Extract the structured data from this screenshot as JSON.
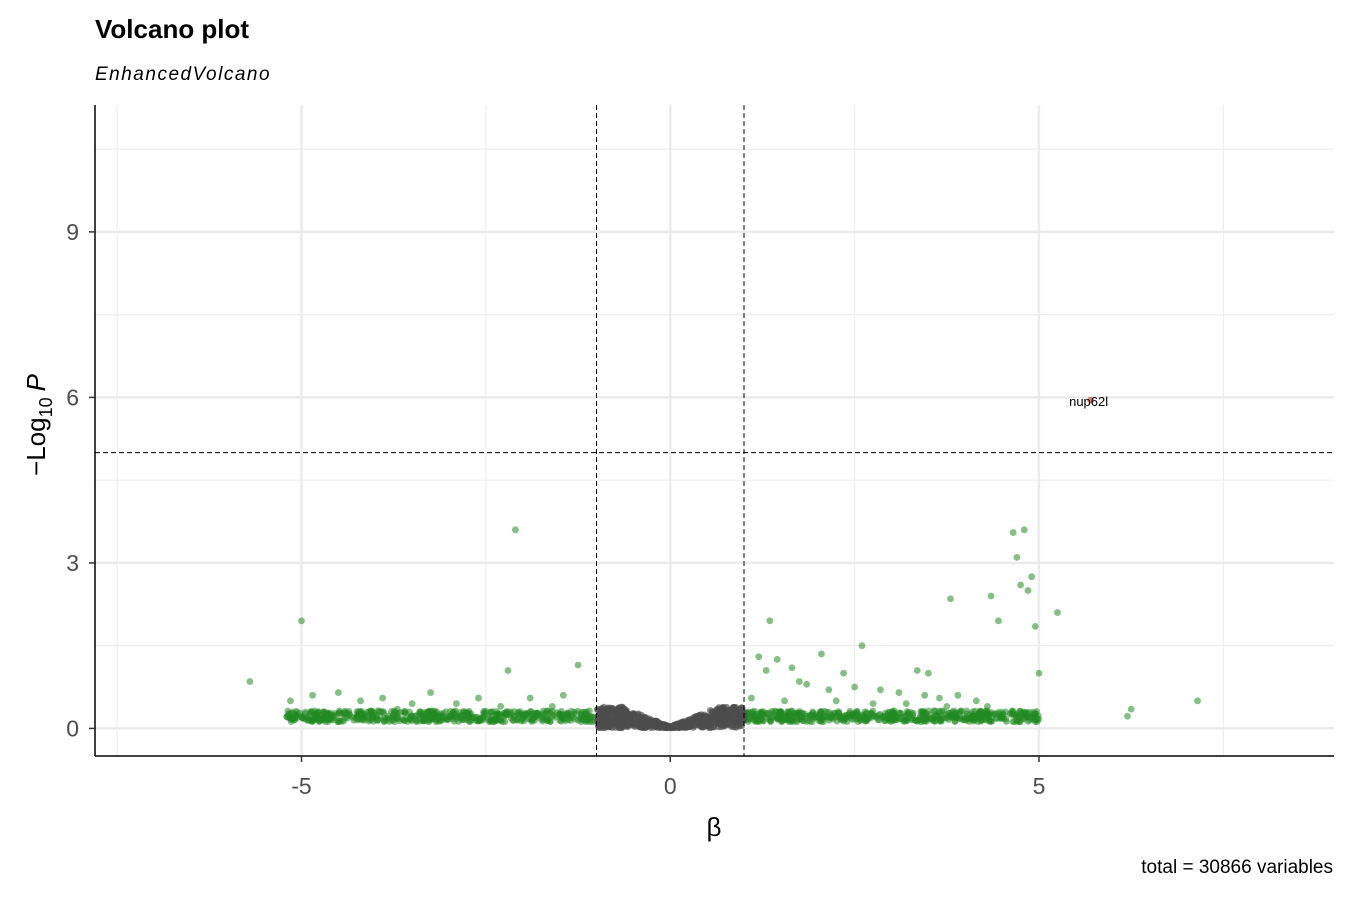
{
  "chart_data": {
    "type": "scatter",
    "title": "Volcano plot",
    "subtitle": "EnhancedVolcano",
    "caption": "total = 30866 variables",
    "xlabel": "β",
    "ylabel": {
      "prefix": "−Log",
      "sub": "10",
      "var": "P"
    },
    "xlim": [
      -7.8,
      9.0
    ],
    "ylim": [
      -0.5,
      11.3
    ],
    "xticks": [
      -5,
      0,
      5
    ],
    "xtick_labels": [
      "-5",
      "0",
      "5"
    ],
    "yticks": [
      0,
      3,
      6,
      9
    ],
    "ytick_labels": [
      "0",
      "3",
      "6",
      "9"
    ],
    "grid": true,
    "fc_cutoff": [
      -1,
      1
    ],
    "p_cutoff_log10": 5,
    "colors": {
      "ns": "#4D4D4D",
      "fc": "#228B22",
      "fc_p": "#CD2626",
      "grid": "#EBEBEB",
      "cutoff": "#000000"
    },
    "label": {
      "text": "nup62l",
      "x": 5.7,
      "y": 5.95
    },
    "significant_points": [
      [
        5.7,
        5.95
      ]
    ],
    "fc_points": [
      [
        -2.1,
        3.6
      ],
      [
        -5.0,
        1.95
      ],
      [
        -5.7,
        0.85
      ],
      [
        -2.2,
        1.05
      ],
      [
        -1.25,
        1.15
      ],
      [
        -4.85,
        0.6
      ],
      [
        -5.15,
        0.5
      ],
      [
        -4.5,
        0.65
      ],
      [
        -3.9,
        0.55
      ],
      [
        -3.25,
        0.65
      ],
      [
        -2.6,
        0.55
      ],
      [
        -1.45,
        0.6
      ],
      [
        -4.2,
        0.5
      ],
      [
        -3.5,
        0.45
      ],
      [
        -2.9,
        0.45
      ],
      [
        -1.9,
        0.55
      ],
      [
        -1.6,
        0.4
      ],
      [
        -4.7,
        0.3
      ],
      [
        -3.7,
        0.35
      ],
      [
        -2.3,
        0.4
      ],
      [
        1.35,
        1.95
      ],
      [
        2.6,
        1.5
      ],
      [
        2.05,
        1.35
      ],
      [
        1.2,
        1.3
      ],
      [
        1.45,
        1.25
      ],
      [
        1.65,
        1.1
      ],
      [
        1.3,
        1.05
      ],
      [
        2.35,
        1.0
      ],
      [
        3.35,
        1.05
      ],
      [
        3.5,
        1.0
      ],
      [
        1.75,
        0.85
      ],
      [
        1.85,
        0.8
      ],
      [
        2.15,
        0.7
      ],
      [
        2.5,
        0.75
      ],
      [
        2.85,
        0.7
      ],
      [
        3.1,
        0.65
      ],
      [
        3.45,
        0.6
      ],
      [
        3.65,
        0.55
      ],
      [
        3.9,
        0.6
      ],
      [
        4.15,
        0.5
      ],
      [
        1.1,
        0.55
      ],
      [
        1.55,
        0.5
      ],
      [
        2.25,
        0.5
      ],
      [
        2.75,
        0.45
      ],
      [
        3.2,
        0.45
      ],
      [
        3.75,
        0.4
      ],
      [
        4.3,
        0.4
      ],
      [
        4.55,
        0.3
      ],
      [
        4.8,
        0.25
      ],
      [
        4.95,
        0.22
      ],
      [
        3.8,
        2.35
      ],
      [
        4.35,
        2.4
      ],
      [
        4.45,
        1.95
      ],
      [
        4.65,
        3.55
      ],
      [
        4.8,
        3.6
      ],
      [
        4.7,
        3.1
      ],
      [
        4.75,
        2.6
      ],
      [
        4.85,
        2.5
      ],
      [
        4.95,
        1.85
      ],
      [
        5.25,
        2.1
      ],
      [
        4.9,
        2.75
      ],
      [
        5.0,
        1.0
      ],
      [
        6.25,
        0.35
      ],
      [
        6.2,
        0.22
      ],
      [
        7.15,
        0.5
      ],
      [
        -5.0,
        0.22
      ],
      [
        -4.0,
        0.22
      ],
      [
        -3.0,
        0.22
      ],
      [
        4.0,
        0.22
      ],
      [
        3.0,
        0.22
      ]
    ],
    "fc_band": {
      "x_left": [
        -5.2,
        -1.0
      ],
      "x_right": [
        1.0,
        5.0
      ],
      "y": [
        0.12,
        0.32
      ]
    },
    "ns_band": {
      "x": [
        -1.0,
        1.0
      ]
    }
  }
}
